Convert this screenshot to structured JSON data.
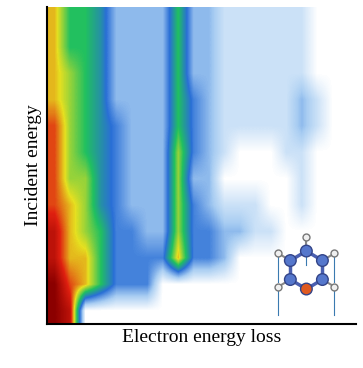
{
  "chart_data": {
    "type": "heatmap",
    "x_label": "Electron energy loss",
    "y_label": "Incident energy",
    "tick_labels": false,
    "cells": [
      [
        7,
        5,
        5,
        4,
        2,
        2,
        2,
        2,
        5,
        2,
        2,
        1,
        1,
        1,
        1,
        1,
        1,
        0,
        0,
        0
      ],
      [
        7,
        5,
        5,
        4,
        2,
        2,
        2,
        2,
        5,
        2,
        2,
        1,
        1,
        1,
        1,
        1,
        1,
        0,
        0,
        0
      ],
      [
        7,
        6,
        5,
        4,
        2,
        2,
        2,
        2,
        5,
        2,
        2,
        1,
        1,
        1,
        1,
        1,
        1,
        0,
        0,
        0
      ],
      [
        7,
        6,
        5,
        4,
        2,
        2,
        2,
        2,
        5,
        3,
        2,
        1,
        1,
        1,
        1,
        1,
        2,
        1,
        0,
        0
      ],
      [
        8,
        6,
        5,
        4,
        3,
        2,
        2,
        2,
        5,
        3,
        2,
        1,
        1,
        1,
        1,
        1,
        2,
        1,
        0,
        0
      ],
      [
        8,
        6,
        5,
        4,
        3,
        2,
        2,
        2,
        6,
        3,
        2,
        1,
        0,
        0,
        0,
        1,
        1,
        0,
        0,
        0
      ],
      [
        8,
        6,
        6,
        4,
        3,
        2,
        2,
        2,
        6,
        2,
        2,
        0,
        0,
        0,
        0,
        0,
        1,
        0,
        0,
        0
      ],
      [
        8,
        7,
        6,
        4,
        3,
        2,
        2,
        2,
        6,
        3,
        2,
        1,
        1,
        1,
        0,
        0,
        1,
        0,
        0,
        0
      ],
      [
        9,
        7,
        6,
        5,
        3,
        3,
        2,
        2,
        6,
        3,
        3,
        2,
        2,
        1,
        1,
        0,
        0,
        0,
        0,
        0
      ],
      [
        9,
        7,
        7,
        5,
        3,
        3,
        3,
        3,
        7,
        3,
        3,
        2,
        0,
        0,
        0,
        0,
        0,
        0,
        0,
        0
      ],
      [
        10,
        8,
        7,
        5,
        3,
        3,
        3,
        0,
        0,
        0,
        0,
        0,
        0,
        0,
        0,
        0,
        0,
        0,
        0,
        0
      ],
      [
        10,
        9,
        0,
        0,
        0,
        0,
        0,
        0,
        0,
        0,
        0,
        0,
        0,
        0,
        0,
        0,
        0,
        0,
        0,
        0
      ]
    ]
  }
}
